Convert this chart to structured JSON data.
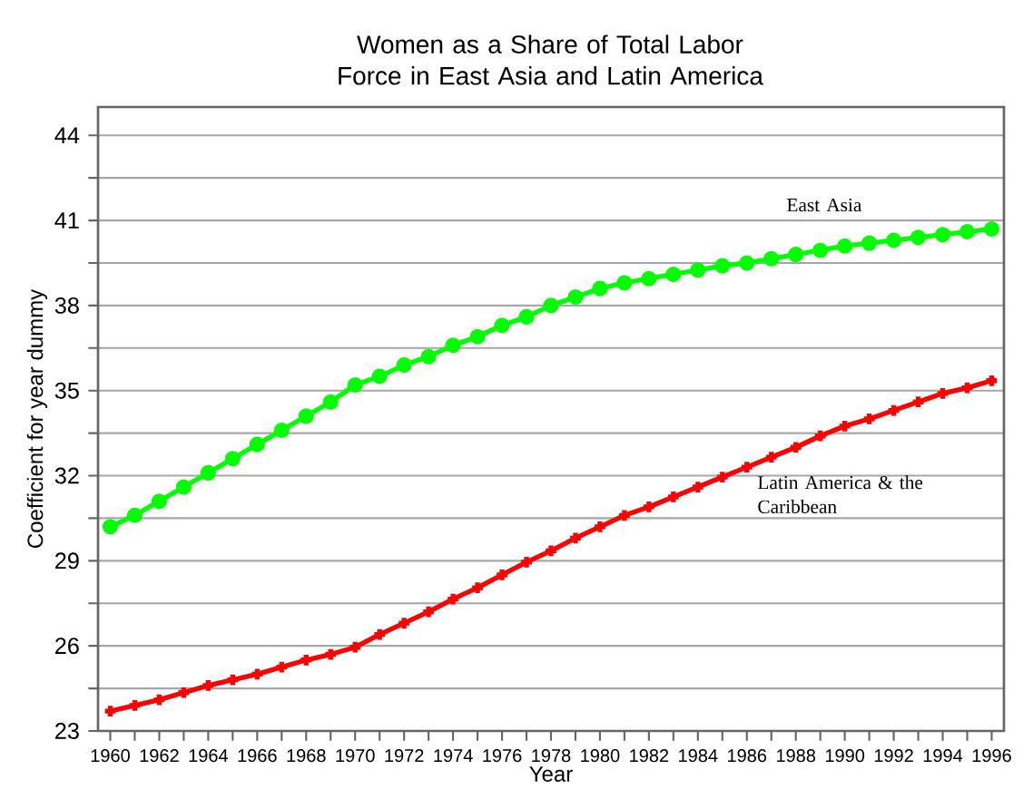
{
  "chart_data": {
    "type": "line",
    "title": "Women as a Share of Total Labor Force in East Asia and Latin America",
    "xlabel": "Year",
    "ylabel": "Coefficient for year dummy",
    "x": [
      1960,
      1961,
      1962,
      1963,
      1964,
      1965,
      1966,
      1967,
      1968,
      1969,
      1970,
      1971,
      1972,
      1973,
      1974,
      1975,
      1976,
      1977,
      1978,
      1979,
      1980,
      1981,
      1982,
      1983,
      1984,
      1985,
      1986,
      1987,
      1988,
      1989,
      1990,
      1991,
      1992,
      1993,
      1994,
      1995,
      1996
    ],
    "series": [
      {
        "name": "East Asia",
        "color": "#00ff00",
        "marker": "circle",
        "values": [
          30.2,
          30.6,
          31.1,
          31.6,
          32.1,
          32.6,
          33.1,
          33.6,
          34.1,
          34.6,
          35.2,
          35.5,
          35.9,
          36.2,
          36.6,
          36.9,
          37.3,
          37.6,
          38.0,
          38.3,
          38.6,
          38.8,
          38.95,
          39.1,
          39.25,
          39.4,
          39.5,
          39.65,
          39.8,
          39.95,
          40.1,
          40.2,
          40.3,
          40.4,
          40.5,
          40.6,
          40.7
        ]
      },
      {
        "name": "Latin America & the Caribbean",
        "color": "#ff0000",
        "marker": "cross",
        "values": [
          23.7,
          23.9,
          24.1,
          24.35,
          24.6,
          24.8,
          25.0,
          25.25,
          25.5,
          25.7,
          25.95,
          26.4,
          26.8,
          27.2,
          27.65,
          28.05,
          28.5,
          28.95,
          29.35,
          29.8,
          30.2,
          30.6,
          30.9,
          31.25,
          31.6,
          31.95,
          32.3,
          32.65,
          33.0,
          33.4,
          33.75,
          34.0,
          34.3,
          34.6,
          34.9,
          35.1,
          35.35
        ]
      }
    ],
    "xlim": [
      1959.5,
      1996.5
    ],
    "ylim": [
      23,
      45
    ],
    "xticks": [
      1960,
      {
        "value": 1961,
        "label": null
      },
      1962,
      {
        "value": 1963,
        "label": null
      },
      1964,
      {
        "value": 1965,
        "label": null
      },
      1966,
      {
        "value": 1967,
        "label": null
      },
      1968,
      {
        "value": 1969,
        "label": null
      },
      1970,
      {
        "value": 1971,
        "label": null
      },
      1972,
      {
        "value": 1973,
        "label": null
      },
      1974,
      {
        "value": 1975,
        "label": null
      },
      1976,
      {
        "value": 1977,
        "label": null
      },
      1978,
      {
        "value": 1979,
        "label": null
      },
      1980,
      {
        "value": 1981,
        "label": null
      },
      1982,
      {
        "value": 1983,
        "label": null
      },
      1984,
      {
        "value": 1985,
        "label": null
      },
      1986,
      {
        "value": 1987,
        "label": null
      },
      1988,
      {
        "value": 1989,
        "label": null
      },
      1990,
      {
        "value": 1991,
        "label": null
      },
      1992,
      {
        "value": 1993,
        "label": null
      },
      1994,
      {
        "value": 1995,
        "label": null
      },
      1996
    ],
    "yticks": [
      23,
      {
        "value": 24.5,
        "label": null
      },
      26,
      {
        "value": 27.5,
        "label": null
      },
      29,
      {
        "value": 30.5,
        "label": null
      },
      32,
      {
        "value": 33.5,
        "label": null
      },
      35,
      {
        "value": 36.5,
        "label": null
      },
      38,
      {
        "value": 39.5,
        "label": null
      },
      41,
      {
        "value": 42.5,
        "label": null
      },
      44
    ],
    "grid": "y",
    "legend": false,
    "line_style": "solid"
  }
}
